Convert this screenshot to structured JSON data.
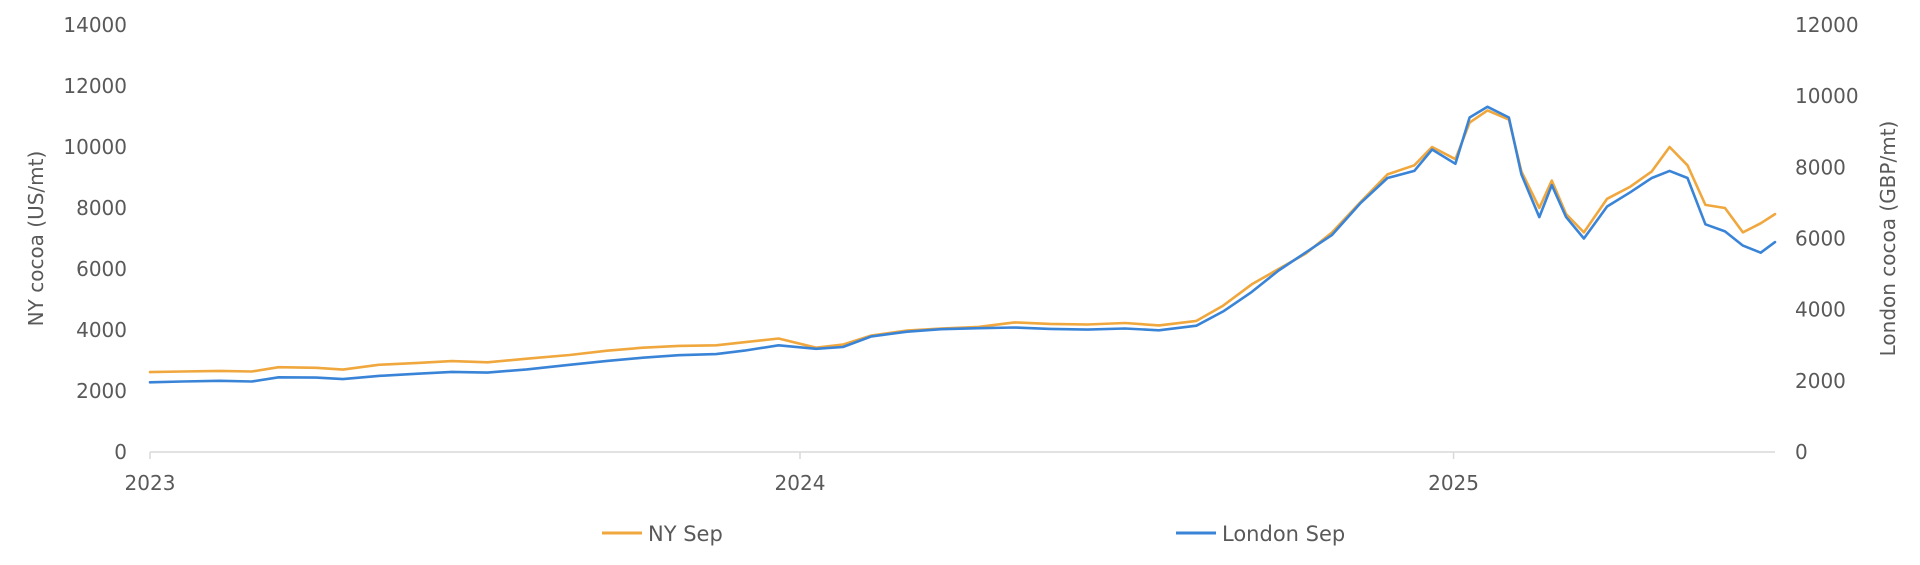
{
  "chart_data": {
    "type": "line",
    "title": "",
    "ylabel": "NY cocoa (US/mt)",
    "y2label": "London cocoa (GBP/mt)",
    "xlim": [
      "2023-01-02",
      "2025-06-30"
    ],
    "ylim": [
      0,
      14000
    ],
    "y2lim": [
      0,
      12000
    ],
    "x_ticks": [
      "2023-01-01",
      "2024-01-01",
      "2025-01-01"
    ],
    "x_tick_labels": [
      "2023",
      "2024",
      "2025"
    ],
    "y_ticks": [
      0,
      2000,
      4000,
      6000,
      8000,
      10000,
      12000,
      14000
    ],
    "y2_ticks": [
      0,
      2000,
      4000,
      6000,
      8000,
      10000,
      12000
    ],
    "grid": false,
    "legend_position": "bottom",
    "series": [
      {
        "name": "NY Sep",
        "axis": "left",
        "color": "#F0A73D",
        "points": [
          [
            "2023-01-02",
            2620
          ],
          [
            "2023-01-20",
            2640
          ],
          [
            "2023-02-10",
            2660
          ],
          [
            "2023-02-28",
            2640
          ],
          [
            "2023-03-15",
            2780
          ],
          [
            "2023-04-05",
            2760
          ],
          [
            "2023-04-20",
            2700
          ],
          [
            "2023-05-10",
            2860
          ],
          [
            "2023-06-01",
            2920
          ],
          [
            "2023-06-20",
            2980
          ],
          [
            "2023-07-10",
            2940
          ],
          [
            "2023-08-01",
            3060
          ],
          [
            "2023-08-25",
            3180
          ],
          [
            "2023-09-15",
            3320
          ],
          [
            "2023-10-05",
            3420
          ],
          [
            "2023-10-25",
            3480
          ],
          [
            "2023-11-15",
            3500
          ],
          [
            "2023-12-01",
            3600
          ],
          [
            "2023-12-20",
            3720
          ],
          [
            "2024-01-10",
            3420
          ],
          [
            "2024-01-25",
            3520
          ],
          [
            "2024-02-10",
            3820
          ],
          [
            "2024-03-01",
            3980
          ],
          [
            "2024-03-20",
            4050
          ],
          [
            "2024-04-10",
            4100
          ],
          [
            "2024-04-30",
            4250
          ],
          [
            "2024-05-20",
            4200
          ],
          [
            "2024-06-10",
            4180
          ],
          [
            "2024-07-01",
            4230
          ],
          [
            "2024-07-20",
            4150
          ],
          [
            "2024-08-10",
            4300
          ],
          [
            "2024-08-25",
            4800
          ],
          [
            "2024-09-10",
            5500
          ],
          [
            "2024-09-25",
            6000
          ],
          [
            "2024-10-10",
            6500
          ],
          [
            "2024-10-25",
            7200
          ],
          [
            "2024-11-10",
            8200
          ],
          [
            "2024-11-25",
            9100
          ],
          [
            "2024-12-10",
            9400
          ],
          [
            "2024-12-20",
            10000
          ],
          [
            "2025-01-02",
            9600
          ],
          [
            "2025-01-10",
            10800
          ],
          [
            "2025-01-20",
            11200
          ],
          [
            "2025-02-01",
            10900
          ],
          [
            "2025-02-08",
            9200
          ],
          [
            "2025-02-18",
            8000
          ],
          [
            "2025-02-25",
            8900
          ],
          [
            "2025-03-05",
            7800
          ],
          [
            "2025-03-15",
            7200
          ],
          [
            "2025-03-28",
            8300
          ],
          [
            "2025-04-10",
            8700
          ],
          [
            "2025-04-22",
            9200
          ],
          [
            "2025-05-02",
            10000
          ],
          [
            "2025-05-12",
            9400
          ],
          [
            "2025-05-22",
            8100
          ],
          [
            "2025-06-02",
            8000
          ],
          [
            "2025-06-12",
            7200
          ],
          [
            "2025-06-22",
            7500
          ],
          [
            "2025-06-30",
            7800
          ]
        ]
      },
      {
        "name": "London Sep",
        "axis": "right",
        "color": "#3A84D8",
        "points": [
          [
            "2023-01-02",
            1960
          ],
          [
            "2023-01-20",
            1980
          ],
          [
            "2023-02-10",
            2000
          ],
          [
            "2023-02-28",
            1980
          ],
          [
            "2023-03-15",
            2100
          ],
          [
            "2023-04-05",
            2090
          ],
          [
            "2023-04-20",
            2050
          ],
          [
            "2023-05-10",
            2140
          ],
          [
            "2023-06-01",
            2200
          ],
          [
            "2023-06-20",
            2250
          ],
          [
            "2023-07-10",
            2230
          ],
          [
            "2023-08-01",
            2320
          ],
          [
            "2023-08-25",
            2450
          ],
          [
            "2023-09-15",
            2560
          ],
          [
            "2023-10-05",
            2650
          ],
          [
            "2023-10-25",
            2720
          ],
          [
            "2023-11-15",
            2750
          ],
          [
            "2023-12-01",
            2850
          ],
          [
            "2023-12-20",
            3000
          ],
          [
            "2024-01-10",
            2900
          ],
          [
            "2024-01-25",
            2950
          ],
          [
            "2024-02-10",
            3250
          ],
          [
            "2024-03-01",
            3380
          ],
          [
            "2024-03-20",
            3450
          ],
          [
            "2024-04-10",
            3480
          ],
          [
            "2024-04-30",
            3500
          ],
          [
            "2024-05-20",
            3460
          ],
          [
            "2024-06-10",
            3440
          ],
          [
            "2024-07-01",
            3470
          ],
          [
            "2024-07-20",
            3420
          ],
          [
            "2024-08-10",
            3550
          ],
          [
            "2024-08-25",
            3950
          ],
          [
            "2024-09-10",
            4500
          ],
          [
            "2024-09-25",
            5100
          ],
          [
            "2024-10-10",
            5600
          ],
          [
            "2024-10-25",
            6100
          ],
          [
            "2024-11-10",
            7000
          ],
          [
            "2024-11-25",
            7700
          ],
          [
            "2024-12-10",
            7900
          ],
          [
            "2024-12-20",
            8500
          ],
          [
            "2025-01-02",
            8100
          ],
          [
            "2025-01-10",
            9400
          ],
          [
            "2025-01-20",
            9700
          ],
          [
            "2025-02-01",
            9400
          ],
          [
            "2025-02-08",
            7800
          ],
          [
            "2025-02-18",
            6600
          ],
          [
            "2025-02-25",
            7500
          ],
          [
            "2025-03-05",
            6600
          ],
          [
            "2025-03-15",
            6000
          ],
          [
            "2025-03-28",
            6900
          ],
          [
            "2025-04-10",
            7300
          ],
          [
            "2025-04-22",
            7700
          ],
          [
            "2025-05-02",
            7900
          ],
          [
            "2025-05-12",
            7700
          ],
          [
            "2025-05-22",
            6400
          ],
          [
            "2025-06-02",
            6200
          ],
          [
            "2025-06-12",
            5800
          ],
          [
            "2025-06-22",
            5600
          ],
          [
            "2025-06-30",
            5900
          ]
        ]
      }
    ]
  }
}
